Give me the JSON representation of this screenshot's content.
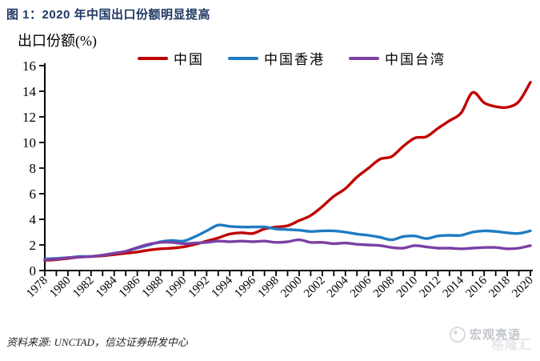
{
  "figure_title": "图 1：2020 年中国出口份额明显提高",
  "source": {
    "text": "资料来源: UNCTAD，信达证券研发中心"
  },
  "watermark": {
    "brand": "宏观亮语",
    "site": "格隆汇"
  },
  "chart_data": {
    "type": "line",
    "title": "图 1：2020 年中国出口份额明显提高",
    "ylabel": "出口份额(%)",
    "xlabel": "",
    "ylim": [
      0,
      16
    ],
    "ytick_step": 2,
    "xtick_label_step": 2,
    "grid": false,
    "legend_position": "top",
    "x": [
      1978,
      1979,
      1980,
      1981,
      1982,
      1983,
      1984,
      1985,
      1986,
      1987,
      1988,
      1989,
      1990,
      1991,
      1992,
      1993,
      1994,
      1995,
      1996,
      1997,
      1998,
      1999,
      2000,
      2001,
      2002,
      2003,
      2004,
      2005,
      2006,
      2007,
      2008,
      2009,
      2010,
      2011,
      2012,
      2013,
      2014,
      2015,
      2016,
      2017,
      2018,
      2019,
      2020
    ],
    "series": [
      {
        "name": "中国",
        "color": "#c00000",
        "values": [
          0.8,
          0.85,
          0.95,
          1.05,
          1.1,
          1.15,
          1.25,
          1.35,
          1.45,
          1.6,
          1.7,
          1.75,
          1.85,
          2.05,
          2.3,
          2.55,
          2.85,
          2.95,
          2.9,
          3.25,
          3.4,
          3.5,
          3.9,
          4.3,
          5.0,
          5.8,
          6.4,
          7.3,
          8.0,
          8.7,
          8.9,
          9.7,
          10.35,
          10.45,
          11.1,
          11.7,
          12.3,
          13.9,
          13.1,
          12.8,
          12.75,
          13.2,
          14.7
        ]
      },
      {
        "name": "中国香港",
        "color": "#1f7cc2",
        "values": [
          0.9,
          0.95,
          1.0,
          1.1,
          1.1,
          1.2,
          1.35,
          1.5,
          1.75,
          2.0,
          2.25,
          2.35,
          2.3,
          2.65,
          3.1,
          3.55,
          3.45,
          3.4,
          3.4,
          3.4,
          3.25,
          3.2,
          3.15,
          3.05,
          3.1,
          3.1,
          3.0,
          2.85,
          2.75,
          2.6,
          2.4,
          2.65,
          2.7,
          2.5,
          2.7,
          2.75,
          2.75,
          3.0,
          3.1,
          3.05,
          2.95,
          2.9,
          3.1
        ]
      },
      {
        "name": "中国台湾",
        "color": "#7b3fa5",
        "values": [
          0.85,
          0.9,
          1.0,
          1.05,
          1.1,
          1.2,
          1.35,
          1.5,
          1.8,
          2.05,
          2.2,
          2.2,
          2.1,
          2.15,
          2.2,
          2.3,
          2.25,
          2.3,
          2.25,
          2.3,
          2.2,
          2.25,
          2.4,
          2.2,
          2.2,
          2.1,
          2.15,
          2.05,
          2.0,
          1.95,
          1.8,
          1.75,
          1.95,
          1.85,
          1.75,
          1.75,
          1.7,
          1.75,
          1.8,
          1.8,
          1.7,
          1.75,
          1.95
        ]
      }
    ]
  }
}
